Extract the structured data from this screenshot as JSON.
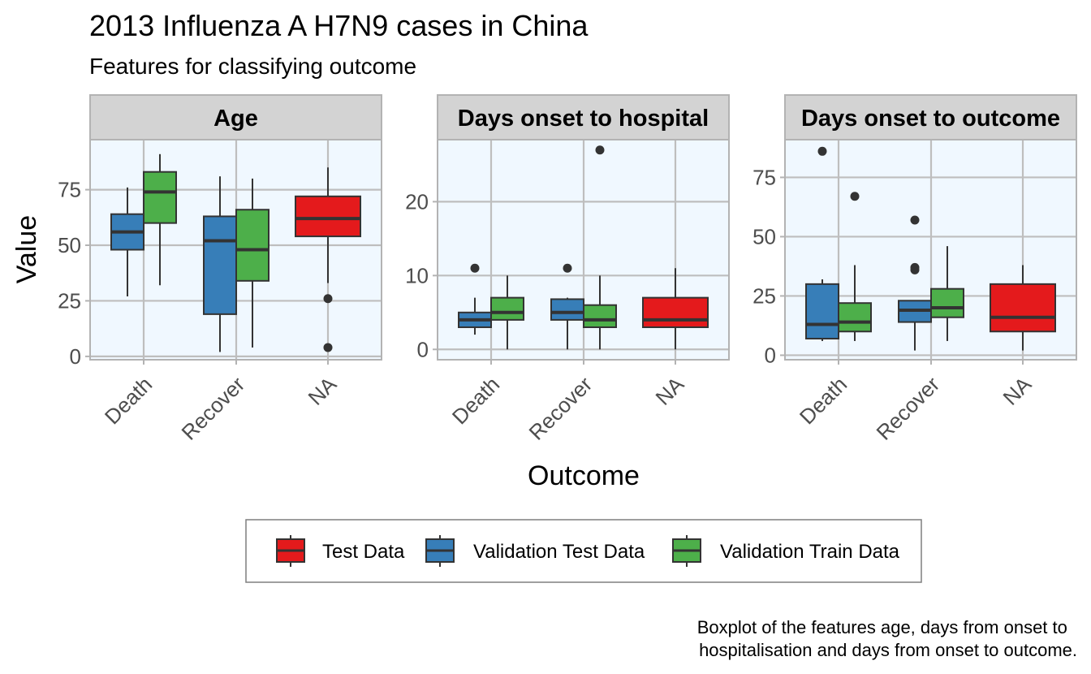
{
  "chart_data": {
    "type": "boxplot",
    "title": "2013 Influenza A H7N9 cases in China",
    "subtitle": "Features for classifying outcome",
    "xlabel": "Outcome",
    "ylabel": "Value",
    "caption_lines": [
      "Boxplot of the features age, days from onset to",
      "hospitalisation and days from onset to outcome."
    ],
    "categories": [
      "Death",
      "Recover",
      "NA"
    ],
    "grid": true,
    "legend_position": "bottom",
    "series": [
      {
        "name": "Test Data",
        "color": "#e41a1c"
      },
      {
        "name": "Validation Test Data",
        "color": "#377eb8"
      },
      {
        "name": "Validation Train Data",
        "color": "#4daf4a"
      }
    ],
    "panels": [
      {
        "label": "Age",
        "ylim": [
          -1.5,
          97.5
        ],
        "yticks": [
          0,
          25,
          50,
          75
        ],
        "boxes": [
          {
            "category": "Death",
            "series": "Validation Test Data",
            "min": 27,
            "q1": 48,
            "median": 56,
            "q3": 64,
            "max": 76,
            "outliers": []
          },
          {
            "category": "Death",
            "series": "Validation Train Data",
            "min": 32,
            "q1": 60,
            "median": 74,
            "q3": 83,
            "max": 91,
            "outliers": []
          },
          {
            "category": "Recover",
            "series": "Validation Test Data",
            "min": 2,
            "q1": 19,
            "median": 52,
            "q3": 63,
            "max": 81,
            "outliers": []
          },
          {
            "category": "Recover",
            "series": "Validation Train Data",
            "min": 4,
            "q1": 34,
            "median": 48,
            "q3": 66,
            "max": 80,
            "outliers": []
          },
          {
            "category": "NA",
            "series": "Test Data",
            "min": 33,
            "q1": 54,
            "median": 62,
            "q3": 72,
            "max": 85,
            "outliers": [
              26,
              4
            ]
          }
        ]
      },
      {
        "label": "Days onset to hospital",
        "ylim": [
          -1.4,
          28.4
        ],
        "yticks": [
          0,
          10,
          20
        ],
        "boxes": [
          {
            "category": "Death",
            "series": "Validation Test Data",
            "min": 2,
            "q1": 3,
            "median": 4,
            "q3": 5,
            "max": 7,
            "outliers": [
              11
            ]
          },
          {
            "category": "Death",
            "series": "Validation Train Data",
            "min": 0,
            "q1": 4,
            "median": 5,
            "q3": 7,
            "max": 10,
            "outliers": []
          },
          {
            "category": "Recover",
            "series": "Validation Test Data",
            "min": 0,
            "q1": 4,
            "median": 5,
            "q3": 6.8,
            "max": 7,
            "outliers": [
              11
            ]
          },
          {
            "category": "Recover",
            "series": "Validation Train Data",
            "min": 0,
            "q1": 3,
            "median": 4,
            "q3": 6,
            "max": 10,
            "outliers": [
              27
            ]
          },
          {
            "category": "NA",
            "series": "Test Data",
            "min": 0,
            "q1": 3,
            "median": 4,
            "q3": 7,
            "max": 11,
            "outliers": []
          }
        ]
      },
      {
        "label": "Days onset to outcome",
        "ylim": [
          -1.9,
          90.9
        ],
        "yticks": [
          0,
          25,
          50,
          75
        ],
        "boxes": [
          {
            "category": "Death",
            "series": "Validation Test Data",
            "min": 6,
            "q1": 7,
            "median": 13,
            "q3": 30,
            "max": 32,
            "outliers": [
              86
            ]
          },
          {
            "category": "Death",
            "series": "Validation Train Data",
            "min": 6,
            "q1": 10,
            "median": 14,
            "q3": 22,
            "max": 38,
            "outliers": [
              67
            ]
          },
          {
            "category": "Recover",
            "series": "Validation Test Data",
            "min": 2,
            "q1": 14,
            "median": 19,
            "q3": 23,
            "max": 23,
            "outliers": [
              36,
              37,
              57
            ]
          },
          {
            "category": "Recover",
            "series": "Validation Train Data",
            "min": 6,
            "q1": 16,
            "median": 20,
            "q3": 28,
            "max": 46,
            "outliers": []
          },
          {
            "category": "NA",
            "series": "Test Data",
            "min": 2,
            "q1": 10,
            "median": 16,
            "q3": 30,
            "max": 38,
            "outliers": []
          }
        ]
      }
    ]
  }
}
